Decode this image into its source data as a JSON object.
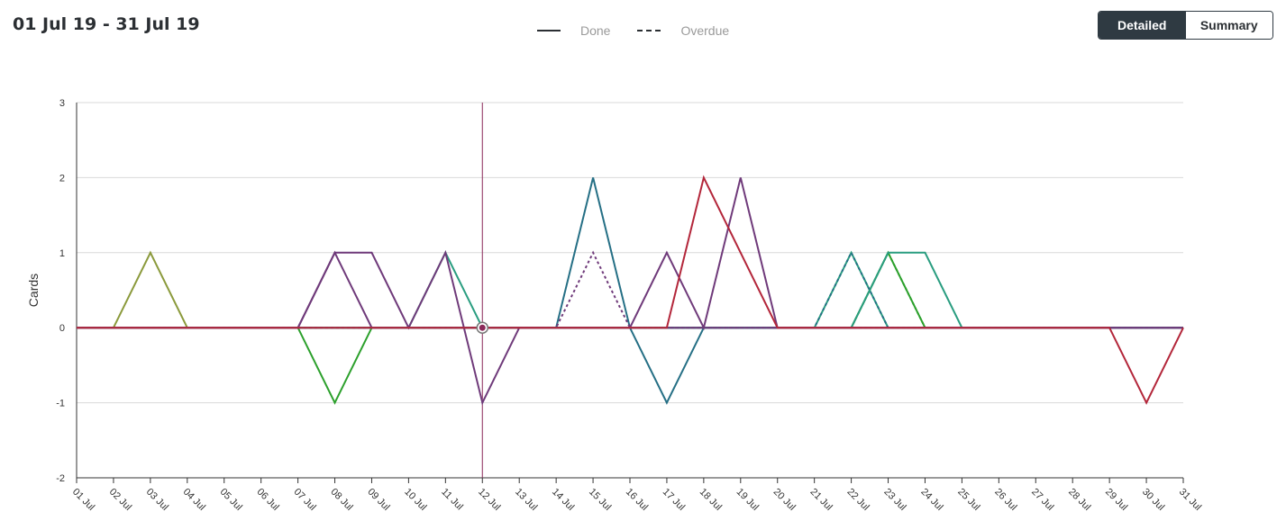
{
  "header": {
    "date_range": "01 Jul 19 - 31 Jul 19"
  },
  "legend": {
    "done_label": "Done",
    "overdue_label": "Overdue"
  },
  "view_toggle": {
    "detailed_label": "Detailed",
    "summary_label": "Summary",
    "active": "Detailed"
  },
  "colors": {
    "olive": "#8b9a3c",
    "green": "#2ca02c",
    "teal": "#2a9d80",
    "petrol": "#256f85",
    "purple": "#6f3a7a",
    "red": "#b3263a",
    "hover": "#8b2a5a",
    "grid": "#d9d9d9"
  },
  "chart_data": {
    "type": "line",
    "title": "",
    "xlabel": "",
    "ylabel": "Cards",
    "ylim": [
      -2,
      3
    ],
    "yticks": [
      -2,
      -1,
      0,
      1,
      2,
      3
    ],
    "grid": true,
    "legend_position": "top-center",
    "categories": [
      "01 Jul",
      "02 Jul",
      "03 Jul",
      "04 Jul",
      "05 Jul",
      "06 Jul",
      "07 Jul",
      "08 Jul",
      "09 Jul",
      "10 Jul",
      "11 Jul",
      "12 Jul",
      "13 Jul",
      "14 Jul",
      "15 Jul",
      "16 Jul",
      "17 Jul",
      "18 Jul",
      "19 Jul",
      "20 Jul",
      "21 Jul",
      "22 Jul",
      "23 Jul",
      "24 Jul",
      "25 Jul",
      "26 Jul",
      "27 Jul",
      "28 Jul",
      "29 Jul",
      "30 Jul",
      "31 Jul"
    ],
    "hover_marker": {
      "x": "12 Jul",
      "y": 0
    },
    "series": [
      {
        "color": "#8b9a3c",
        "style": "solid",
        "values": [
          0,
          0,
          1,
          0,
          0,
          0,
          0,
          0,
          0,
          0,
          0,
          0,
          0,
          0,
          0,
          0,
          0,
          0,
          0,
          0,
          0,
          0,
          0,
          0,
          0,
          0,
          0,
          0,
          0,
          0,
          0
        ]
      },
      {
        "color": "#2ca02c",
        "style": "solid",
        "values": [
          0,
          0,
          0,
          0,
          0,
          0,
          0,
          -1,
          0,
          0,
          0,
          0,
          0,
          0,
          0,
          0,
          0,
          0,
          0,
          0,
          0,
          0,
          1,
          0,
          0,
          0,
          0,
          0,
          0,
          0,
          0
        ]
      },
      {
        "color": "#2ca02c",
        "style": "dashed",
        "values": [
          0,
          0,
          0,
          0,
          0,
          0,
          0,
          0,
          0,
          0,
          0,
          0,
          0,
          0,
          0,
          0,
          0,
          0,
          0,
          0,
          0,
          0,
          1,
          0,
          0,
          0,
          0,
          0,
          0,
          0,
          0
        ]
      },
      {
        "color": "#2a9d80",
        "style": "solid",
        "values": [
          0,
          0,
          0,
          0,
          0,
          0,
          0,
          0,
          0,
          0,
          1,
          0,
          0,
          0,
          0,
          0,
          0,
          0,
          0,
          0,
          0,
          1,
          0,
          0,
          0,
          0,
          0,
          0,
          0,
          0,
          0
        ]
      },
      {
        "color": "#2a9d80",
        "style": "solid",
        "values": [
          0,
          0,
          0,
          0,
          0,
          0,
          0,
          0,
          0,
          0,
          0,
          0,
          0,
          0,
          0,
          0,
          0,
          0,
          0,
          0,
          0,
          0,
          1,
          1,
          0,
          0,
          0,
          0,
          0,
          0,
          0
        ]
      },
      {
        "color": "#256f85",
        "style": "solid",
        "values": [
          0,
          0,
          0,
          0,
          0,
          0,
          0,
          0,
          0,
          0,
          0,
          0,
          0,
          0,
          2,
          0,
          -1,
          0,
          0,
          0,
          0,
          0,
          0,
          0,
          0,
          0,
          0,
          0,
          0,
          0,
          0
        ]
      },
      {
        "color": "#256f85",
        "style": "dashed",
        "values": [
          0,
          0,
          0,
          0,
          0,
          0,
          0,
          0,
          0,
          0,
          0,
          0,
          0,
          0,
          0,
          0,
          0,
          0,
          0,
          0,
          0,
          1,
          0,
          0,
          0,
          0,
          0,
          0,
          0,
          0,
          0
        ]
      },
      {
        "color": "#6f3a7a",
        "style": "solid",
        "values": [
          0,
          0,
          0,
          0,
          0,
          0,
          0,
          1,
          1,
          0,
          1,
          -1,
          0,
          0,
          0,
          0,
          1,
          0,
          2,
          0,
          0,
          0,
          0,
          0,
          0,
          0,
          0,
          0,
          0,
          0,
          0
        ]
      },
      {
        "color": "#6f3a7a",
        "style": "solid",
        "values": [
          0,
          0,
          0,
          0,
          0,
          0,
          0,
          1,
          0,
          0,
          0,
          0,
          0,
          0,
          0,
          0,
          0,
          0,
          0,
          0,
          0,
          0,
          0,
          0,
          0,
          0,
          0,
          0,
          0,
          0,
          0
        ]
      },
      {
        "color": "#6f3a7a",
        "style": "dashed",
        "values": [
          0,
          0,
          0,
          0,
          0,
          0,
          0,
          0,
          0,
          0,
          0,
          0,
          0,
          0,
          1,
          0,
          0,
          0,
          0,
          0,
          0,
          0,
          0,
          0,
          0,
          0,
          0,
          0,
          0,
          0,
          0
        ]
      },
      {
        "color": "#b3263a",
        "style": "solid",
        "values": [
          0,
          0,
          0,
          0,
          0,
          0,
          0,
          0,
          0,
          0,
          0,
          0,
          0,
          0,
          0,
          0,
          0,
          2,
          1,
          0,
          0,
          0,
          0,
          0,
          0,
          0,
          0,
          0,
          0,
          -1,
          0
        ]
      }
    ]
  }
}
